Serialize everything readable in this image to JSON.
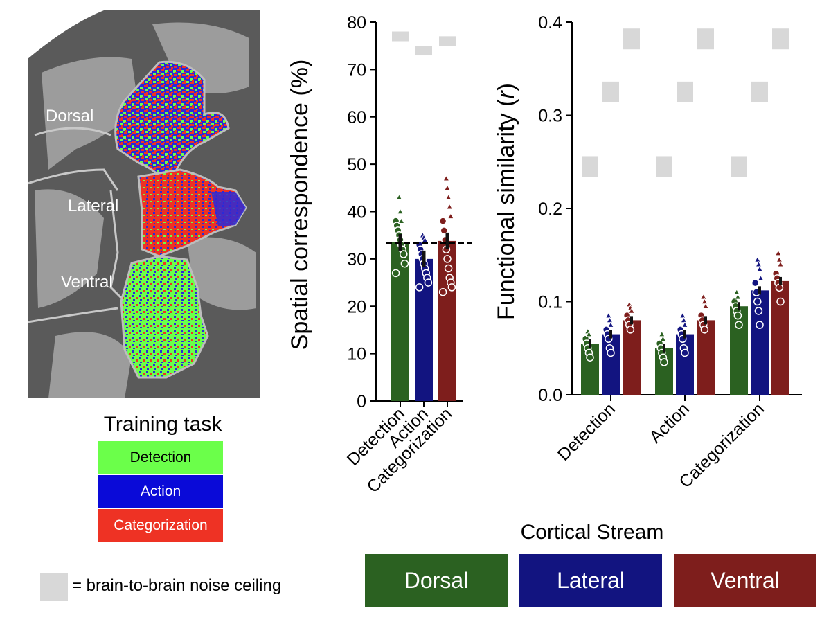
{
  "brain_labels": {
    "dorsal": "Dorsal",
    "lateral": "Lateral",
    "ventral": "Ventral"
  },
  "legend": {
    "title": "Training task",
    "items": [
      {
        "label": "Detection",
        "color": "#6bff4a",
        "text_color": "#000000"
      },
      {
        "label": "Action",
        "color": "#0a0ad8",
        "text_color": "#ffffff"
      },
      {
        "label": "Categorization",
        "color": "#ee3224",
        "text_color": "#ffffff"
      }
    ]
  },
  "noise_ceiling_label": "= brain-to-brain noise ceiling",
  "noise_ceiling_color": "#d8d8d8",
  "streams": {
    "title": "Cortical Stream",
    "items": [
      {
        "label": "Dorsal",
        "color": "#2b6121"
      },
      {
        "label": "Lateral",
        "color": "#121480"
      },
      {
        "label": "Ventral",
        "color": "#7e1e1c"
      }
    ]
  },
  "chart_data": [
    {
      "type": "bar",
      "title": "",
      "xlabel": "",
      "ylabel": "Spatial correspondence (%)",
      "ylim": [
        0,
        80
      ],
      "yticks": [
        0,
        10,
        20,
        30,
        40,
        50,
        60,
        70,
        80
      ],
      "categories": [
        "Detection",
        "Action",
        "Categorization"
      ],
      "values": [
        33.5,
        30.0,
        33.8
      ],
      "colors": [
        "#2b6121",
        "#121480",
        "#7e1e1c"
      ],
      "chance_line": 33.3,
      "noise_ceiling": [
        77.0,
        74.0,
        76.0
      ],
      "points": [
        [
          38,
          37,
          36,
          35,
          34,
          33,
          32,
          31,
          29,
          27
        ],
        [
          33,
          32,
          31,
          30,
          29,
          28,
          27,
          26,
          25,
          24
        ],
        [
          38,
          36,
          34,
          32,
          30,
          28,
          26,
          25,
          24,
          23
        ]
      ],
      "triangles": [
        [
          43,
          40,
          38
        ],
        [
          35,
          34.5,
          34
        ],
        [
          47,
          45,
          43,
          41,
          39
        ]
      ]
    },
    {
      "type": "bar",
      "title": "",
      "xlabel": "",
      "ylabel": "Functional similarity (r)",
      "ylim": [
        0,
        0.4
      ],
      "yticks": [
        0.0,
        0.1,
        0.2,
        0.3,
        0.4
      ],
      "categories": [
        "Detection",
        "Action",
        "Categorization"
      ],
      "series": [
        {
          "name": "Dorsal",
          "color": "#2b6121",
          "values": [
            0.055,
            0.05,
            0.095
          ],
          "noise_ceiling": [
            0.245,
            0.245,
            0.245
          ]
        },
        {
          "name": "Lateral",
          "color": "#121480",
          "values": [
            0.065,
            0.065,
            0.112
          ],
          "noise_ceiling": [
            0.325,
            0.325,
            0.325
          ]
        },
        {
          "name": "Ventral",
          "color": "#7e1e1c",
          "values": [
            0.08,
            0.08,
            0.122
          ],
          "noise_ceiling": [
            0.382,
            0.382,
            0.382
          ]
        }
      ],
      "points": [
        [
          [
            0.06,
            0.055,
            0.05,
            0.045,
            0.04
          ],
          [
            0.07,
            0.065,
            0.06,
            0.05,
            0.045
          ],
          [
            0.085,
            0.08,
            0.075,
            0.07
          ]
        ],
        [
          [
            0.055,
            0.05,
            0.045,
            0.04,
            0.035
          ],
          [
            0.07,
            0.065,
            0.06,
            0.05,
            0.045
          ],
          [
            0.085,
            0.08,
            0.075,
            0.07
          ]
        ],
        [
          [
            0.1,
            0.095,
            0.09,
            0.085,
            0.075
          ],
          [
            0.12,
            0.11,
            0.1,
            0.09,
            0.075
          ],
          [
            0.13,
            0.125,
            0.12,
            0.115,
            0.1
          ]
        ]
      ],
      "triangles": [
        [
          [
            0.068,
            0.065
          ],
          [
            0.085,
            0.08,
            0.075
          ],
          [
            0.097,
            0.093,
            0.09
          ]
        ],
        [
          [
            0.065,
            0.06
          ],
          [
            0.085,
            0.08,
            0.075
          ],
          [
            0.105,
            0.1,
            0.095
          ]
        ],
        [
          [
            0.11,
            0.105
          ],
          [
            0.145,
            0.14,
            0.135,
            0.125
          ],
          [
            0.152,
            0.145,
            0.14
          ]
        ]
      ]
    }
  ]
}
